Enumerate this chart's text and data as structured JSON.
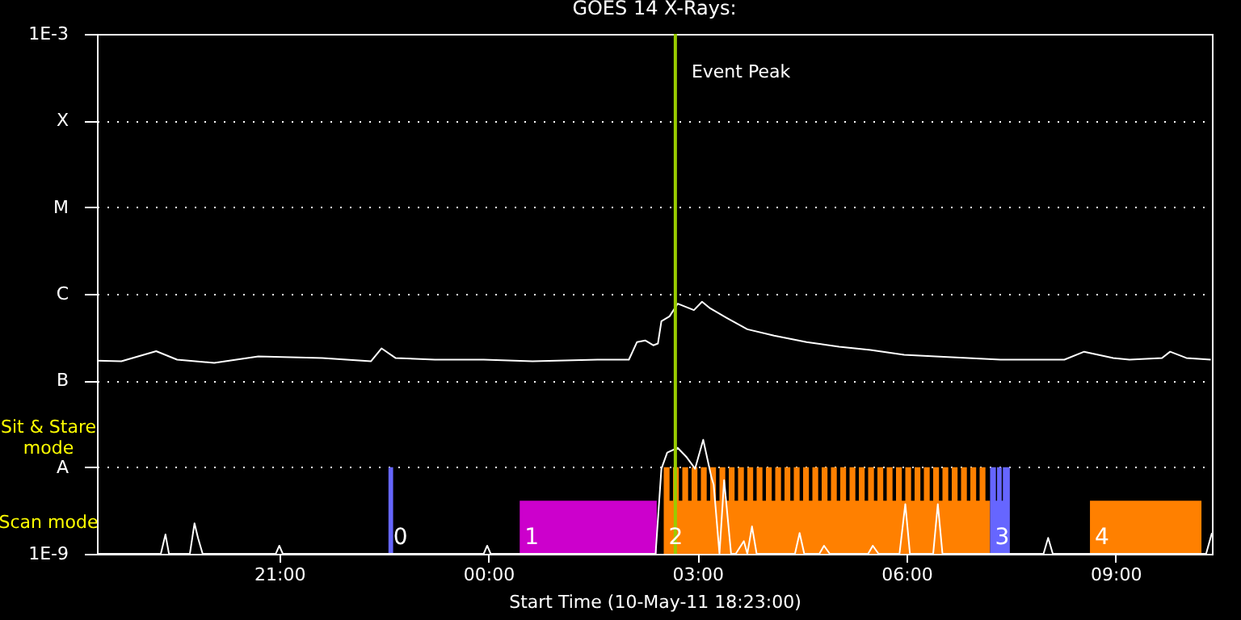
{
  "chart_data": {
    "type": "line",
    "title": "GOES 14 X-Rays:",
    "xlabel": "Start Time (10-May-11 18:23:00)",
    "xlim": [
      "--05-10T18:23",
      "--05-11T10:23"
    ],
    "ylim": [
      1e-09,
      0.001
    ],
    "log": "y",
    "grid": "y",
    "xticks": [
      {
        "value": "--05-10T21:00",
        "label": "21:00"
      },
      {
        "value": "--05-11T00:00",
        "label": "00:00"
      },
      {
        "value": "--05-11T03:00",
        "label": "03:00"
      },
      {
        "value": "--05-11T06:00",
        "label": "06:00"
      },
      {
        "value": "--05-11T09:00",
        "label": "09:00"
      }
    ],
    "yticks": [
      {
        "value": 1e-09,
        "label": "1E-9"
      },
      {
        "value": 1e-08,
        "label": "A"
      },
      {
        "value": 1e-07,
        "label": "B"
      },
      {
        "value": 1e-06,
        "label": "C"
      },
      {
        "value": 1e-05,
        "label": "M"
      },
      {
        "value": 0.0001,
        "label": "X"
      },
      {
        "value": 0.001,
        "label": "1E-3"
      }
    ],
    "series": [
      {
        "type": "area",
        "color": "#cc00cc",
        "x": [
          "--05-11T00:27",
          "--05-11T02:25"
        ],
        "values": [
          4.1e-09,
          4.1e-09
        ]
      },
      {
        "type": "area",
        "color": "#ff8000",
        "x": [
          "--05-11T02:31",
          "--05-11T02:36",
          "--05-11T02:39",
          "--05-11T02:44",
          "--05-11T02:47",
          "--05-11T02:52",
          "--05-11T02:55",
          "--05-11T03:00",
          "--05-11T03:03",
          "--05-11T03:08",
          "--05-11T03:11",
          "--05-11T03:16",
          "--05-11T03:19",
          "--05-11T03:24",
          "--05-11T03:27",
          "--05-11T03:32",
          "--05-11T03:35",
          "--05-11T03:40",
          "--05-11T03:43",
          "--05-11T03:48",
          "--05-11T03:51",
          "--05-11T03:56",
          "--05-11T03:59",
          "--05-11T04:04",
          "--05-11T04:07",
          "--05-11T04:12",
          "--05-11T04:15",
          "--05-11T04:20",
          "--05-11T04:23",
          "--05-11T04:28",
          "--05-11T04:31",
          "--05-11T04:36",
          "--05-11T04:39",
          "--05-11T04:44",
          "--05-11T04:47",
          "--05-11T04:52",
          "--05-11T04:55",
          "--05-11T05:00",
          "--05-11T05:03",
          "--05-11T05:08",
          "--05-11T05:11",
          "--05-11T05:16",
          "--05-11T05:19",
          "--05-11T05:24",
          "--05-11T05:27",
          "--05-11T05:32",
          "--05-11T05:35",
          "--05-11T05:40",
          "--05-11T05:43",
          "--05-11T05:48",
          "--05-11T05:51",
          "--05-11T05:56",
          "--05-11T05:59",
          "--05-11T06:04",
          "--05-11T06:07",
          "--05-11T06:12",
          "--05-11T06:15",
          "--05-11T06:20",
          "--05-11T06:23",
          "--05-11T06:28",
          "--05-11T06:31",
          "--05-11T06:36",
          "--05-11T06:39",
          "--05-11T06:44",
          "--05-11T06:47",
          "--05-11T06:52",
          "--05-11T06:55",
          "--05-11T07:00",
          "--05-11T07:03",
          "--05-11T07:08",
          "--05-11T07:12",
          "--05-11T07:13",
          "--05-11T08:38",
          "--05-11T10:14"
        ],
        "values": [
          1e-08,
          4.1e-09,
          1e-08,
          4.1e-09,
          1e-08,
          4.1e-09,
          1e-08,
          4.1e-09,
          1e-08,
          4.1e-09,
          1e-08,
          4.1e-09,
          1e-08,
          4.1e-09,
          1e-08,
          4.1e-09,
          1e-08,
          4.1e-09,
          1e-08,
          4.1e-09,
          1e-08,
          4.1e-09,
          1e-08,
          4.1e-09,
          1e-08,
          4.1e-09,
          1e-08,
          4.1e-09,
          1e-08,
          4.1e-09,
          1e-08,
          4.1e-09,
          1e-08,
          4.1e-09,
          1e-08,
          4.1e-09,
          1e-08,
          4.1e-09,
          1e-08,
          4.1e-09,
          1e-08,
          4.1e-09,
          1e-08,
          4.1e-09,
          1e-08,
          4.1e-09,
          1e-08,
          4.1e-09,
          1e-08,
          4.1e-09,
          1e-08,
          4.1e-09,
          1e-08,
          4.1e-09,
          1e-08,
          4.1e-09,
          1e-08,
          4.1e-09,
          1e-08,
          4.1e-09,
          1e-08,
          4.1e-09,
          1e-08,
          4.1e-09,
          1e-08,
          4.1e-09,
          1e-08,
          4.1e-09,
          1e-08,
          4.1e-09,
          4.1e-09,
          null,
          4.1e-09,
          4.1e-09
        ]
      },
      {
        "type": "area",
        "color": "#6666ff",
        "x": [
          "--05-10T22:34",
          "--05-10T22:38",
          "--05-10T22:39",
          "--05-11T07:12",
          "--05-11T07:17",
          "--05-11T07:18",
          "--05-11T07:22",
          "--05-11T07:23",
          "--05-11T07:29"
        ],
        "values": [
          1e-08,
          1e-08,
          null,
          1e-08,
          4.1e-09,
          1e-08,
          4.1e-09,
          1e-08,
          1e-08
        ]
      },
      {
        "color": "#ffffff",
        "x": [
          "--05-10T18:23",
          "--05-10T18:44",
          "--05-10T19:14",
          "--05-10T19:32",
          "--05-10T20:04",
          "--05-10T20:42",
          "--05-10T21:37",
          "--05-10T22:19",
          "--05-10T22:28",
          "--05-10T22:40",
          "--05-10T23:14",
          "--05-10T23:56",
          "--05-11T00:38",
          "--05-11T01:34",
          "--05-11T02:01",
          "--05-11T02:08",
          "--05-11T02:15",
          "--05-11T02:22",
          "--05-11T02:26",
          "--05-11T02:29",
          "--05-11T02:36",
          "--05-11T02:43",
          "--05-11T02:57",
          "--05-11T03:04",
          "--05-11T03:11",
          "--05-11T03:25",
          "--05-11T03:43",
          "--05-11T04:06",
          "--05-11T04:34",
          "--05-11T05:02",
          "--05-11T05:29",
          "--05-11T05:58",
          "--05-11T06:25",
          "--05-11T06:53",
          "--05-11T07:21",
          "--05-11T07:49",
          "--05-11T08:16",
          "--05-11T08:33",
          "--05-11T08:58",
          "--05-11T09:12",
          "--05-11T09:40",
          "--05-11T09:47",
          "--05-11T10:01",
          "--05-11T10:22"
        ],
        "values": [
          1.69e-07,
          1.67e-07,
          2.18e-07,
          1.74e-07,
          1.6e-07,
          1.9e-07,
          1.82e-07,
          1.67e-07,
          2.35e-07,
          1.82e-07,
          1.74e-07,
          1.74e-07,
          1.67e-07,
          1.74e-07,
          1.74e-07,
          2.78e-07,
          2.9e-07,
          2.55e-07,
          2.67e-07,
          4.84e-07,
          5.5e-07,
          7.7e-07,
          6.5e-07,
          8.1e-07,
          6.8e-07,
          5.3e-07,
          3.9e-07,
          3.3e-07,
          2.78e-07,
          2.45e-07,
          2.25e-07,
          1.98e-07,
          1.9e-07,
          1.82e-07,
          1.74e-07,
          1.74e-07,
          1.74e-07,
          2.15e-07,
          1.82e-07,
          1.74e-07,
          1.82e-07,
          2.15e-07,
          1.82e-07,
          1.74e-07
        ]
      },
      {
        "color": "#ffffff",
        "x": [
          "--05-10T18:23",
          "--05-10T19:18",
          "--05-10T19:22",
          "--05-10T19:25",
          "--05-10T19:43",
          "--05-10T19:47",
          "--05-10T19:50",
          "--05-10T19:54",
          "--05-10T20:57",
          "--05-10T21:00",
          "--05-10T21:03",
          "--05-10T23:56",
          "--05-10T23:59",
          "--05-11T00:02",
          "--05-11T02:24",
          "--05-11T02:29",
          "--05-11T02:34",
          "--05-11T02:43",
          "--05-11T02:51",
          "--05-11T02:58",
          "--05-11T03:05",
          "--05-11T03:12",
          "--05-11T03:14",
          "--05-11T03:19",
          "--05-11T03:23",
          "--05-11T03:29",
          "--05-11T03:33",
          "--05-11T03:40",
          "--05-11T03:43",
          "--05-11T03:47",
          "--05-11T03:51",
          "--05-11T04:24",
          "--05-11T04:28",
          "--05-11T04:32",
          "--05-11T04:45",
          "--05-11T04:49",
          "--05-11T04:54",
          "--05-11T05:27",
          "--05-11T05:31",
          "--05-11T05:36",
          "--05-11T05:54",
          "--05-11T05:59",
          "--05-11T06:03",
          "--05-11T06:23",
          "--05-11T06:27",
          "--05-11T06:31",
          "--05-11T07:58",
          "--05-11T08:02",
          "--05-11T08:06",
          "--05-11T10:18",
          "--05-11T10:23"
        ],
        "values": [
          1e-09,
          1e-09,
          1.67e-09,
          1e-09,
          1e-09,
          2.25e-09,
          1.53e-09,
          1e-09,
          1e-09,
          1.24e-09,
          1e-09,
          1e-09,
          1.24e-09,
          1e-09,
          1e-09,
          9.6e-09,
          1.47e-08,
          1.67e-08,
          1.29e-08,
          9.6e-09,
          2.07e-08,
          7.7e-09,
          6.3e-09,
          1e-09,
          7.1e-09,
          1e-09,
          1e-09,
          1.4e-09,
          1e-09,
          2.07e-09,
          1e-09,
          1e-09,
          1.74e-09,
          1e-09,
          1e-09,
          1.24e-09,
          1e-09,
          1e-09,
          1.24e-09,
          1e-09,
          1e-09,
          3.75e-09,
          1e-09,
          1e-09,
          3.75e-09,
          1e-09,
          1e-09,
          1.53e-09,
          1e-09,
          1e-09,
          1.74e-09
        ]
      }
    ],
    "ref_lines": [
      {
        "axis": "x",
        "value": "--05-11T02:41",
        "label": "Event Peak",
        "color": "#99cc00"
      }
    ],
    "annotations": [
      "Sit & Stare mode",
      "Scan mode",
      {
        "text": "0",
        "x": "--05-10T22:34",
        "y": 1.53e-09
      },
      {
        "text": "1",
        "x": "--05-11T00:27",
        "y": 1.53e-09
      },
      {
        "text": "2",
        "x": "--05-11T02:31",
        "y": 1.53e-09
      },
      {
        "text": "3",
        "x": "--05-11T07:12",
        "y": 1.53e-09
      },
      {
        "text": "4",
        "x": "--05-11T08:38",
        "y": 1.53e-09
      }
    ]
  }
}
